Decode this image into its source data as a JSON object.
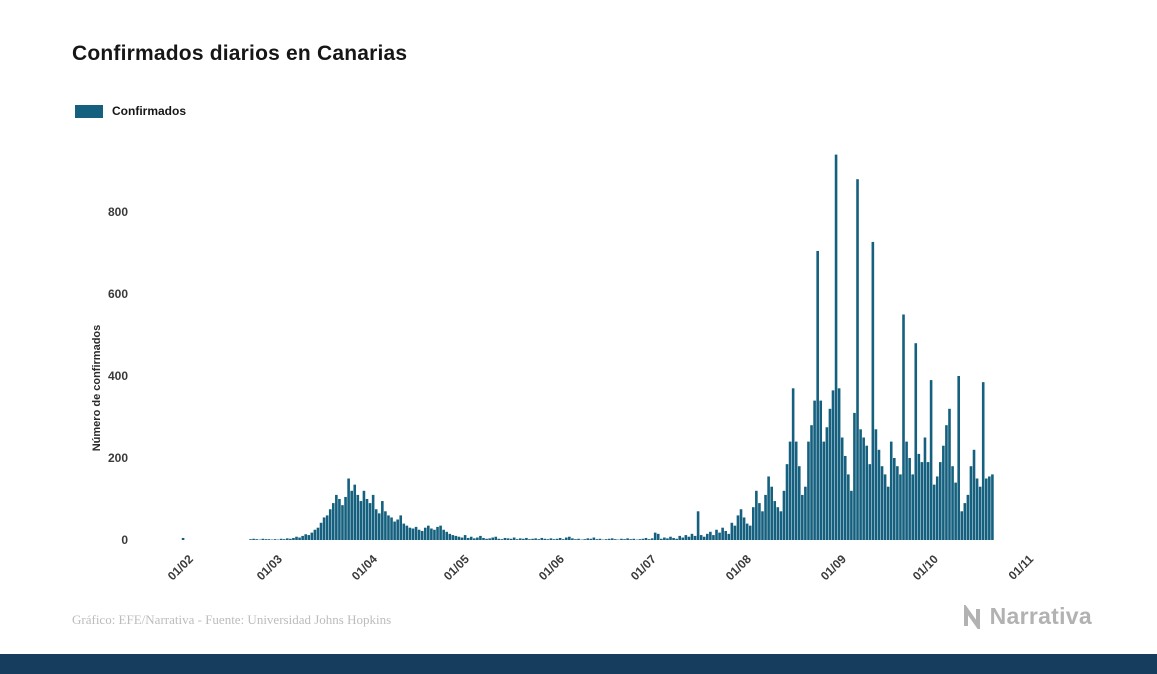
{
  "chart_data": {
    "type": "bar",
    "title": "Confirmados diarios en Canarias",
    "legend_label": "Confirmados",
    "ylabel": "Número de confirmados",
    "xlabel": "",
    "bar_color": "#14607E",
    "grid": false,
    "legend_position": "top-left",
    "yticks": [
      0,
      200,
      400,
      600,
      800
    ],
    "ylim": [
      0,
      950
    ],
    "xtick_labels": [
      "01/02",
      "01/03",
      "01/04",
      "01/05",
      "01/06",
      "01/07",
      "01/08",
      "01/09",
      "01/10",
      "01/11"
    ],
    "xtick_days": [
      0,
      29,
      60,
      90,
      121,
      151,
      182,
      213,
      243,
      274
    ],
    "x_start_label": "01/02",
    "values": [
      0,
      5,
      0,
      0,
      0,
      0,
      0,
      0,
      0,
      0,
      0,
      0,
      0,
      0,
      0,
      0,
      0,
      0,
      0,
      0,
      0,
      0,
      0,
      2,
      3,
      2,
      1,
      3,
      2,
      2,
      1,
      2,
      1,
      3,
      2,
      4,
      3,
      5,
      8,
      6,
      10,
      14,
      12,
      18,
      25,
      30,
      42,
      55,
      60,
      75,
      90,
      110,
      100,
      85,
      105,
      150,
      120,
      135,
      110,
      95,
      120,
      100,
      90,
      110,
      75,
      65,
      95,
      70,
      60,
      55,
      45,
      50,
      60,
      40,
      35,
      30,
      28,
      32,
      25,
      22,
      30,
      35,
      28,
      25,
      32,
      35,
      25,
      20,
      15,
      12,
      10,
      8,
      6,
      12,
      5,
      8,
      4,
      6,
      10,
      5,
      3,
      4,
      6,
      8,
      3,
      2,
      5,
      4,
      3,
      6,
      2,
      4,
      3,
      5,
      2,
      3,
      4,
      2,
      5,
      3,
      2,
      4,
      2,
      3,
      5,
      2,
      6,
      8,
      4,
      2,
      3,
      1,
      2,
      4,
      3,
      6,
      2,
      3,
      1,
      2,
      3,
      4,
      2,
      1,
      3,
      2,
      4,
      2,
      3,
      1,
      2,
      3,
      5,
      2,
      4,
      18,
      15,
      3,
      6,
      4,
      8,
      5,
      3,
      10,
      6,
      12,
      8,
      15,
      10,
      70,
      12,
      8,
      15,
      20,
      12,
      25,
      18,
      30,
      22,
      15,
      42,
      35,
      60,
      75,
      55,
      40,
      35,
      80,
      120,
      90,
      70,
      110,
      155,
      130,
      95,
      80,
      70,
      120,
      185,
      240,
      370,
      240,
      180,
      110,
      130,
      240,
      280,
      340,
      705,
      340,
      240,
      275,
      320,
      365,
      940,
      370,
      250,
      205,
      160,
      120,
      310,
      880,
      270,
      250,
      230,
      185,
      727,
      270,
      220,
      180,
      160,
      130,
      240,
      200,
      180,
      160,
      550,
      240,
      200,
      160,
      480,
      210,
      190,
      250,
      190,
      390,
      135,
      155,
      190,
      230,
      280,
      320,
      180,
      140,
      400,
      70,
      90,
      110,
      180,
      220,
      150,
      130,
      385,
      150,
      155,
      160,
      0,
      0,
      0,
      0,
      0,
      0,
      0,
      0
    ]
  },
  "footer": {
    "credit": "Gráfico: EFE/Narrativa - Fuente: Universidad Johns Hopkins",
    "brand": "Narrativa"
  },
  "colors": {
    "bar": "#14607E",
    "footer_bar": "#163D5E",
    "credit_text": "#BCBCBC",
    "brand_gray": "#B2B2B2",
    "title_text": "#161616"
  }
}
